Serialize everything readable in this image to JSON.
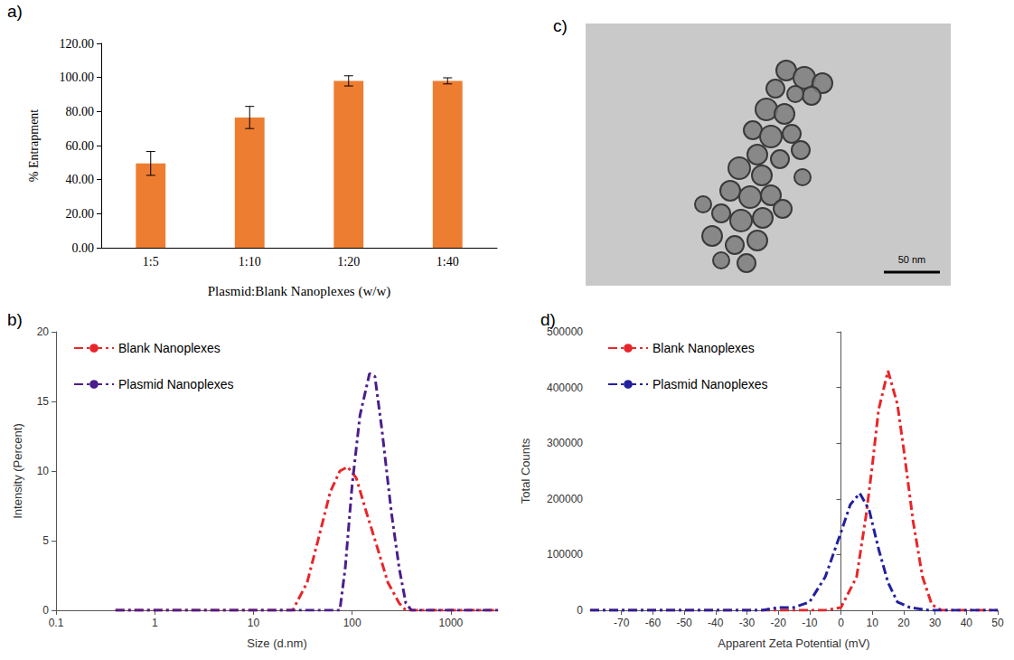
{
  "chart_data": [
    {
      "panel": "a)",
      "type": "bar",
      "categories": [
        "1:5",
        "1:10",
        "1:20",
        "1:40"
      ],
      "values": [
        49.5,
        76.5,
        98.0,
        98.0
      ],
      "errors": [
        7.0,
        6.5,
        3.0,
        1.8
      ],
      "color": "#ed7d31",
      "xlabel": "Plasmid:Blank Nanoplexes (w/w)",
      "ylabel": "% Entrapment",
      "ylim": [
        0,
        120
      ],
      "yticks": [
        {
          "value": 0,
          "label": "0.00"
        },
        {
          "value": 20,
          "label": "20.00"
        },
        {
          "value": 40,
          "label": "40.00"
        },
        {
          "value": 60,
          "label": "60.00"
        },
        {
          "value": 80,
          "label": "80.00"
        },
        {
          "value": 100,
          "label": "100.00"
        },
        {
          "value": 120,
          "label": "120.00"
        }
      ],
      "grid": false
    },
    {
      "panel": "c)",
      "type": "image",
      "annotations": [
        "50 nm"
      ]
    },
    {
      "panel": "b)",
      "type": "line",
      "log": "x",
      "xlabel": "Size (d.nm)",
      "ylabel": "Intensity (Percent)",
      "xlim": [
        0.1,
        3000
      ],
      "xticks": [
        0.1,
        1,
        10,
        100,
        1000
      ],
      "ylim": [
        0,
        20
      ],
      "yticks": [
        0,
        5,
        10,
        15,
        20
      ],
      "legend": "upper left",
      "grid": false,
      "series": [
        {
          "name": "Blank Nanoplexes",
          "color": "#e8262a",
          "line_style": "dashdot",
          "x": [
            0.4,
            1,
            10,
            25,
            35,
            45,
            60,
            75,
            90,
            110,
            140,
            180,
            230,
            300,
            350,
            400,
            1000,
            3000
          ],
          "values": [
            0,
            0,
            0,
            0,
            2,
            5,
            8.5,
            10,
            10.3,
            9.5,
            7,
            4.5,
            2,
            0.5,
            0,
            0,
            0,
            0
          ]
        },
        {
          "name": "Plasmid Nanoplexes",
          "color": "#4b1e8c",
          "line_style": "dashdot",
          "x": [
            0.4,
            1,
            10,
            75,
            85,
            100,
            120,
            150,
            170,
            200,
            250,
            300,
            350,
            400,
            1000,
            3000
          ],
          "values": [
            0,
            0,
            0,
            0,
            3,
            9,
            14,
            17,
            16.8,
            13,
            7,
            3,
            0.5,
            0,
            0,
            0
          ]
        }
      ]
    },
    {
      "panel": "d)",
      "type": "line",
      "xlabel": "Apparent Zeta Potential (mV)",
      "ylabel": "Total Counts",
      "xlim": [
        -80,
        50
      ],
      "xticks": [
        -70,
        -60,
        -50,
        -40,
        -30,
        -20,
        -10,
        0,
        10,
        20,
        30,
        40,
        50
      ],
      "ylim": [
        0,
        500000
      ],
      "yticks": [
        0,
        100000,
        200000,
        300000,
        400000,
        500000
      ],
      "legend": "upper left",
      "grid": false,
      "series": [
        {
          "name": "Blank Nanoplexes",
          "color": "#e8262a",
          "line_style": "dashdot",
          "x": [
            -80,
            -5,
            0,
            5,
            8,
            10,
            12,
            15,
            18,
            20,
            23,
            26,
            29,
            32,
            50
          ],
          "values": [
            0,
            0,
            5000,
            60000,
            170000,
            260000,
            360000,
            430000,
            370000,
            290000,
            160000,
            60000,
            10000,
            0,
            0
          ]
        },
        {
          "name": "Plasmid Nanoplexes",
          "color": "#23209e",
          "line_style": "dashdot",
          "x": [
            -80,
            -25,
            -20,
            -15,
            -10,
            -5,
            0,
            3,
            6,
            9,
            12,
            15,
            18,
            22,
            28,
            50
          ],
          "values": [
            0,
            0,
            5000,
            5000,
            15000,
            60000,
            140000,
            190000,
            210000,
            180000,
            110000,
            50000,
            15000,
            5000,
            0,
            0
          ]
        }
      ]
    }
  ]
}
